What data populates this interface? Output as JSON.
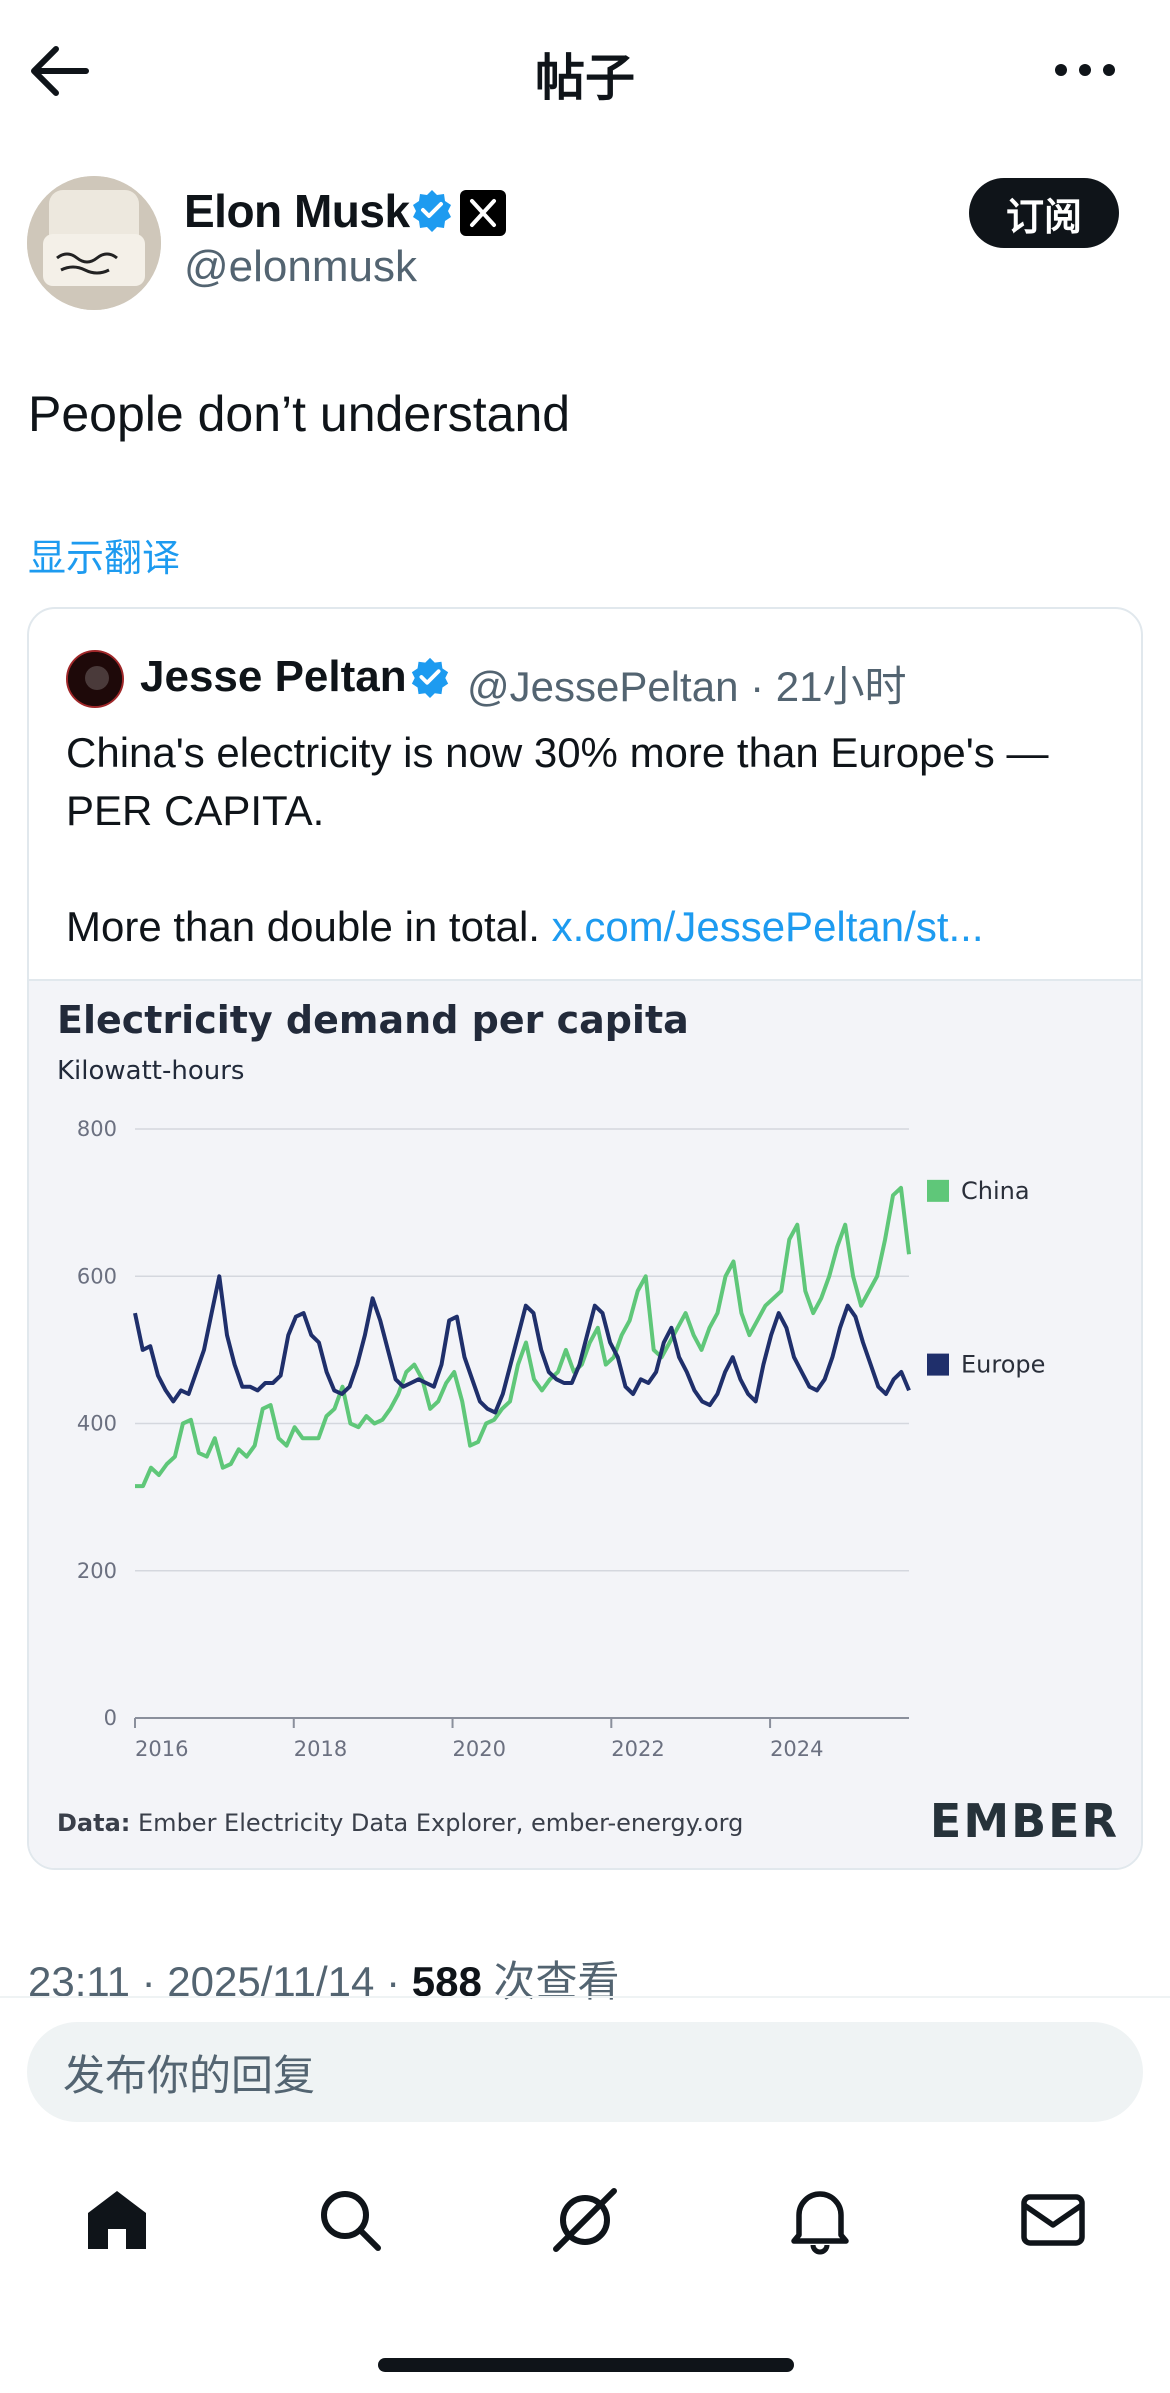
{
  "header": {
    "title": "帖子"
  },
  "post": {
    "author_name": "Elon Musk",
    "handle": "@elonmusk",
    "subscribe_label": "订阅",
    "text": "People don’t understand",
    "translate_label": "显示翻译",
    "timestamp": "23:11 · 2025/11/14 · ",
    "views_count": "588",
    "views_label": " 次查看"
  },
  "quote": {
    "author_name": "Jesse Peltan",
    "meta": "@JessePeltan · 21小时",
    "text_line1": "China's electricity is now 30% more than Europe's — PER CAPITA.",
    "text_line2": "More than double in total. ",
    "link_text": "x.com/JessePeltan/st..."
  },
  "chart_data": {
    "type": "line",
    "title": "Electricity demand per capita",
    "subtitle": "Kilowatt-hours",
    "ylim": [
      0,
      800
    ],
    "yticks": [
      0,
      200,
      400,
      600,
      800
    ],
    "xticks": [
      2016,
      2018,
      2020,
      2022,
      2024
    ],
    "xlim": [
      2016.0,
      2025.75
    ],
    "grid": true,
    "legend_position": "right",
    "source_label": "Data:",
    "source_text": " Ember Electricity Data Explorer, ember-energy.org",
    "brand": "EMBER",
    "series": [
      {
        "name": "China",
        "color": "#5fc779",
        "values": [
          315,
          315,
          340,
          330,
          345,
          355,
          400,
          405,
          360,
          355,
          380,
          340,
          345,
          365,
          355,
          370,
          420,
          425,
          380,
          370,
          395,
          380,
          380,
          380,
          410,
          420,
          450,
          400,
          395,
          410,
          400,
          405,
          420,
          440,
          470,
          480,
          460,
          420,
          430,
          455,
          470,
          430,
          370,
          375,
          400,
          405,
          420,
          430,
          480,
          510,
          460,
          445,
          460,
          470,
          500,
          470,
          480,
          510,
          530,
          480,
          490,
          520,
          540,
          580,
          600,
          500,
          490,
          510,
          530,
          550,
          520,
          500,
          530,
          550,
          600,
          620,
          550,
          520,
          540,
          560,
          570,
          580,
          650,
          670,
          580,
          550,
          570,
          600,
          640,
          670,
          600,
          560,
          580,
          600,
          650,
          710,
          720,
          630
        ]
      },
      {
        "name": "Europe",
        "color": "#1f2f6b",
        "values": [
          550,
          500,
          505,
          465,
          445,
          430,
          445,
          440,
          470,
          500,
          550,
          600,
          520,
          480,
          450,
          450,
          445,
          455,
          455,
          465,
          520,
          545,
          550,
          520,
          510,
          470,
          445,
          440,
          450,
          480,
          520,
          570,
          540,
          500,
          460,
          450,
          455,
          460,
          455,
          450,
          480,
          540,
          545,
          490,
          460,
          430,
          420,
          415,
          440,
          480,
          520,
          560,
          550,
          500,
          470,
          460,
          455,
          455,
          480,
          520,
          560,
          550,
          510,
          490,
          450,
          440,
          460,
          455,
          470,
          510,
          530,
          490,
          470,
          445,
          430,
          425,
          440,
          470,
          490,
          460,
          440,
          430,
          480,
          520,
          550,
          530,
          490,
          470,
          450,
          445,
          460,
          490,
          530,
          560,
          545,
          510,
          480,
          450,
          440,
          460,
          470,
          445
        ]
      }
    ]
  },
  "nav": {
    "home": "home-icon",
    "search": "search-icon",
    "grok": "grok-icon",
    "notifications": "bell-icon",
    "messages": "mail-icon"
  },
  "reply": {
    "placeholder": "发布你的回复"
  },
  "colors": {
    "accent": "#1d9bf0",
    "text": "#0f1419",
    "muted": "#536471"
  }
}
